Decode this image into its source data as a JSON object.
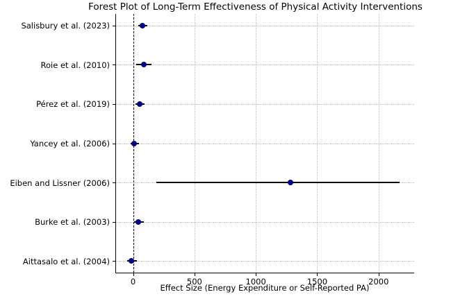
{
  "chart_data": {
    "type": "scatter",
    "subtype": "forest-plot",
    "title": "Forest Plot of Long-Term Effectiveness of Physical Activity Interventions",
    "xlabel": "Effect Size (Energy Expenditure or Self-Reported PA)",
    "ylabel": "",
    "x_ticks": [
      0,
      500,
      1000,
      1500,
      2000
    ],
    "xlim": [
      -145,
      2290
    ],
    "zero_reference_line_x": 0,
    "grid": "dotted, both axes",
    "legend": "none",
    "marker_color": "#00008B",
    "ci_line_color": "#000000",
    "zero_line_style": "black dashed",
    "studies": [
      {
        "label": "Salisbury et al. (2023)",
        "effect": 76,
        "ci_low": 42,
        "ci_high": 116
      },
      {
        "label": "Roie et al. (2010)",
        "effect": 88,
        "ci_low": 25,
        "ci_high": 150
      },
      {
        "label": "Pérez et al. (2019)",
        "effect": 54,
        "ci_low": 20,
        "ci_high": 93
      },
      {
        "label": "Yancey et al. (2006)",
        "effect": 8,
        "ci_low": -20,
        "ci_high": 48
      },
      {
        "label": "Eiben and Lissner (2006)",
        "effect": 1282,
        "ci_low": 190,
        "ci_high": 2170
      },
      {
        "label": "Burke et al. (2003)",
        "effect": 42,
        "ci_low": 8,
        "ci_high": 88
      },
      {
        "label": "Aittasalo et al. (2004)",
        "effect": -14,
        "ci_low": -48,
        "ci_high": 31
      }
    ]
  }
}
